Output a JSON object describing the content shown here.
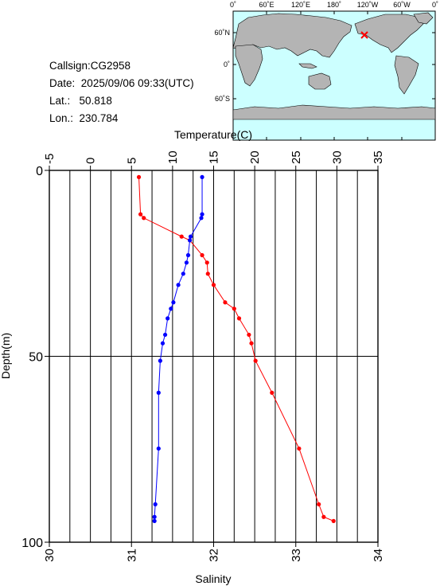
{
  "station": {
    "callsign_label": "Callsign:",
    "callsign": "CG2958",
    "date_label": "Date:",
    "date": "2025/09/06 09:33(UTC)",
    "lat_label": "Lat.:",
    "lat": "50.818",
    "lon_label": "Lon.:",
    "lon": "230.784"
  },
  "map": {
    "lon_ticks": [
      "0˚",
      "60˚E",
      "120˚E",
      "180˚",
      "120˚W",
      "60˚W",
      "0˚"
    ],
    "lat_ticks": [
      "60˚N",
      "0˚",
      "60˚S"
    ],
    "ocean_color": "#ccffff",
    "land_color": "#b4b4b4",
    "marker_color": "#ff0000"
  },
  "chart_data": {
    "type": "line",
    "y_label": "Depth(m)",
    "y_ticks": [
      "0",
      "50",
      "100"
    ],
    "y_range": [
      0,
      100
    ],
    "y_inverted": true,
    "grid": true,
    "temperature_axis": {
      "label": "Temperature(C)",
      "range": [
        -5,
        35
      ],
      "ticks": [
        "-5",
        "0",
        "5",
        "10",
        "15",
        "20",
        "25",
        "30",
        "35"
      ]
    },
    "salinity_axis": {
      "label": "Salinity",
      "range": [
        30,
        34
      ],
      "ticks": [
        "30",
        "31",
        "32",
        "33",
        "34"
      ]
    },
    "series": [
      {
        "axis": "temperature",
        "color": "#ff0000",
        "points": [
          {
            "depth": 1.8,
            "value": 5.9
          },
          {
            "depth": 11.8,
            "value": 6.1
          },
          {
            "depth": 12.8,
            "value": 6.5
          },
          {
            "depth": 17.8,
            "value": 11.1
          },
          {
            "depth": 18.8,
            "value": 12.1
          },
          {
            "depth": 22.8,
            "value": 13.6
          },
          {
            "depth": 24.8,
            "value": 14.2
          },
          {
            "depth": 27.8,
            "value": 14.3
          },
          {
            "depth": 30.8,
            "value": 15.0
          },
          {
            "depth": 35.5,
            "value": 16.4
          },
          {
            "depth": 37.2,
            "value": 17.5
          },
          {
            "depth": 39.8,
            "value": 18.1
          },
          {
            "depth": 44.2,
            "value": 19.3
          },
          {
            "depth": 46.5,
            "value": 19.6
          },
          {
            "depth": 51.2,
            "value": 20.1
          },
          {
            "depth": 59.8,
            "value": 22.1
          },
          {
            "depth": 74.8,
            "value": 25.4
          },
          {
            "depth": 89.8,
            "value": 27.8
          },
          {
            "depth": 93.2,
            "value": 28.4
          },
          {
            "depth": 94.3,
            "value": 29.6
          }
        ]
      },
      {
        "axis": "salinity",
        "color": "#0000ff",
        "points": [
          {
            "depth": 1.8,
            "value": 31.86
          },
          {
            "depth": 11.8,
            "value": 31.86
          },
          {
            "depth": 12.8,
            "value": 31.85
          },
          {
            "depth": 17.8,
            "value": 31.72
          },
          {
            "depth": 18.8,
            "value": 31.71
          },
          {
            "depth": 22.8,
            "value": 31.69
          },
          {
            "depth": 24.8,
            "value": 31.67
          },
          {
            "depth": 27.8,
            "value": 31.63
          },
          {
            "depth": 30.8,
            "value": 31.57
          },
          {
            "depth": 35.5,
            "value": 31.51
          },
          {
            "depth": 37.2,
            "value": 31.48
          },
          {
            "depth": 39.8,
            "value": 31.44
          },
          {
            "depth": 44.2,
            "value": 31.41
          },
          {
            "depth": 46.5,
            "value": 31.38
          },
          {
            "depth": 51.2,
            "value": 31.35
          },
          {
            "depth": 59.8,
            "value": 31.33
          },
          {
            "depth": 74.8,
            "value": 31.33
          },
          {
            "depth": 89.8,
            "value": 31.29
          },
          {
            "depth": 93.2,
            "value": 31.28
          },
          {
            "depth": 94.3,
            "value": 31.28
          }
        ]
      }
    ]
  }
}
